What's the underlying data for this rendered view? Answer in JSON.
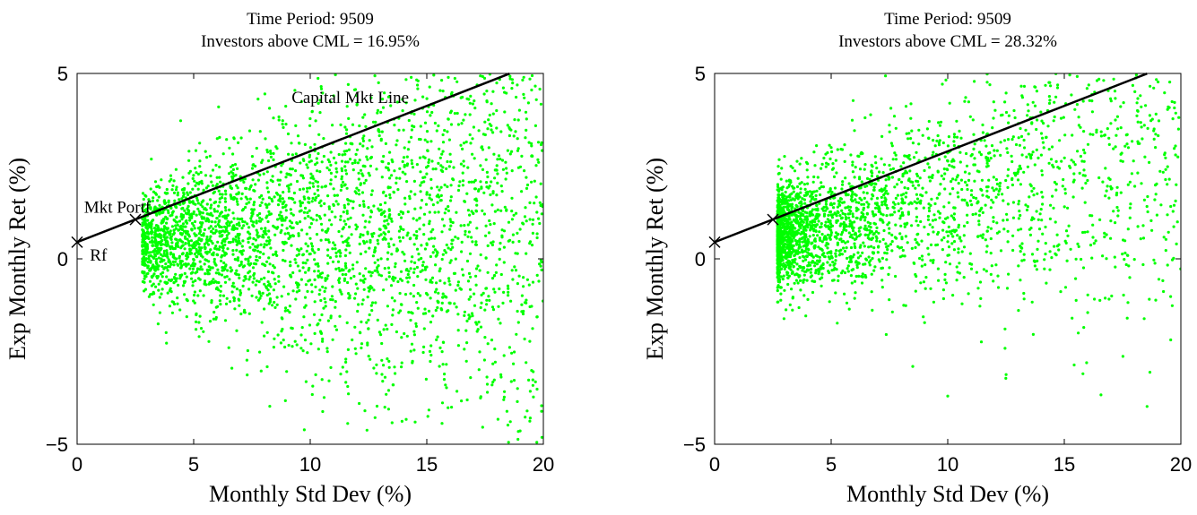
{
  "chart_data": [
    {
      "type": "scatter",
      "title_line1": "Time Period: 9509",
      "title_line2": "Investors above CML = 16.95%",
      "xlabel": "Monthly Std Dev (%)",
      "ylabel": "Exp Monthly Ret (%)",
      "xlim": [
        0,
        20
      ],
      "ylim": [
        -5,
        5
      ],
      "xticks": [
        0,
        5,
        10,
        15,
        20
      ],
      "yticks": [
        -5,
        0,
        5
      ],
      "xtick_labels": [
        "0",
        "5",
        "10",
        "15",
        "20"
      ],
      "ytick_labels": [
        "−5",
        "0",
        "5"
      ],
      "cml": {
        "rf": 0.45,
        "slope": 0.245,
        "x_end": 18.55
      },
      "mkt_portf": {
        "x": 2.5,
        "y": 1.06
      },
      "rf_point": {
        "x": 0,
        "y": 0.45
      },
      "annotations": {
        "cml_label": "Capital Mkt Line",
        "mkt_label": "Mkt Portf",
        "rf_label": "Rf"
      },
      "point_color": "#00ff00",
      "scatter": {
        "n": 3200,
        "sigma_min": 2.8,
        "sigma_max": 20,
        "sigma_skew": 1.3,
        "mean_intercept": 0.3,
        "mean_slope": 0.05,
        "spread_base": 0.2,
        "spread_slope": 0.16,
        "seed": 9509,
        "extra_points": [
          [
            5.1,
            -1.9
          ],
          [
            5.1,
            -1.7
          ],
          [
            14.5,
            -4.4
          ],
          [
            17.8,
            -3.4
          ],
          [
            17.6,
            -3.6
          ],
          [
            18.3,
            -3.8
          ],
          [
            13.2,
            -4.0
          ],
          [
            15.8,
            -3.4
          ],
          [
            12.1,
            -3.9
          ]
        ]
      }
    },
    {
      "type": "scatter",
      "title_line1": "Time Period: 9509",
      "title_line2": "Investors above CML = 28.32%",
      "xlabel": "Monthly Std Dev (%)",
      "ylabel": "Exp Monthly Ret (%)",
      "xlim": [
        0,
        20
      ],
      "ylim": [
        -5,
        5
      ],
      "xticks": [
        0,
        5,
        10,
        15,
        20
      ],
      "yticks": [
        -5,
        0,
        5
      ],
      "xtick_labels": [
        "0",
        "5",
        "10",
        "15",
        "20"
      ],
      "ytick_labels": [
        "−5",
        "0",
        "5"
      ],
      "cml": {
        "rf": 0.45,
        "slope": 0.245,
        "x_end": 18.55
      },
      "mkt_portf": {
        "x": 2.5,
        "y": 1.06
      },
      "rf_point": {
        "x": 0,
        "y": 0.45
      },
      "annotations": {
        "cml_label": "",
        "mkt_label": "",
        "rf_label": ""
      },
      "point_color": "#00ff00",
      "scatter": {
        "n": 2700,
        "sigma_min": 2.7,
        "sigma_max": 20,
        "sigma_skew": 2.4,
        "mean_intercept": 0.2,
        "mean_slope": 0.15,
        "spread_base": 0.35,
        "spread_slope": 0.11,
        "seed": 2832,
        "extra_points": [
          [
            10.0,
            -3.7
          ],
          [
            8.5,
            -2.9
          ],
          [
            15.8,
            -3.1
          ],
          [
            15.6,
            -2.0
          ],
          [
            17.7,
            -1.6
          ],
          [
            19.9,
            3.5
          ],
          [
            19.8,
            2.0
          ],
          [
            18.3,
            4.1
          ]
        ]
      }
    }
  ]
}
